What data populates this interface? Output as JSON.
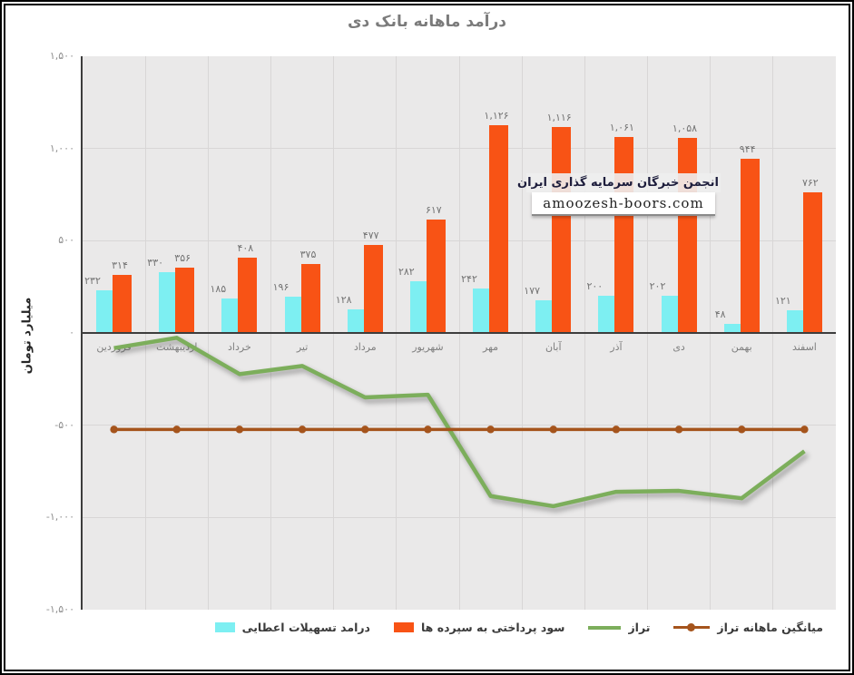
{
  "page": {
    "watermark": {
      "line1": "انجمن خبرگان سرمایه گذاری ایران",
      "line2": "amoozesh-boors.com"
    }
  },
  "colors": {
    "bar_income": "#7DEFF2",
    "bar_interest": "#F85315",
    "balance_line": "#7CAE5B",
    "average_line": "#A5541C",
    "grid": "#d8d6d6",
    "plot_bg": "#EAE9E9",
    "axis": "#3d3d3d",
    "text_gray": "#7f7f7f"
  },
  "chart_data": {
    "type": "bar",
    "subtype": "combo-bar-line",
    "title": "درآمد ماهانه بانک دی",
    "ylabel": "میلیارد تومان",
    "ylim": [
      -1500,
      1500
    ],
    "grid": true,
    "legend_position": "bottom",
    "categories": [
      "فروردین",
      "اردیبهشت",
      "خرداد",
      "تیر",
      "مرداد",
      "شهریور",
      "مهر",
      "آبان",
      "آذر",
      "دی",
      "بهمن",
      "اسفند"
    ],
    "yticks": {
      "values": [
        1500,
        1000,
        500,
        0,
        -500,
        -1000,
        -1500
      ],
      "labels": [
        "۱,۵۰۰",
        "۱,۰۰۰",
        "۵۰۰",
        "۰",
        "-۵۰۰",
        "-۱,۰۰۰",
        "-۱,۵۰۰"
      ]
    },
    "series": [
      {
        "name": "درامد تسهیلات اعطایی",
        "type": "bar",
        "color": "#7DEFF2",
        "values": [
          232,
          330,
          185,
          196,
          128,
          282,
          242,
          177,
          200,
          202,
          48,
          121
        ],
        "labels": [
          "۲۳۲",
          "۳۳۰",
          "۱۸۵",
          "۱۹۶",
          "۱۲۸",
          "۲۸۲",
          "۲۴۲",
          "۱۷۷",
          "۲۰۰",
          "۲۰۲",
          "۴۸",
          "۱۲۱"
        ]
      },
      {
        "name": "سود پرداختی به سپرده ها",
        "type": "bar",
        "color": "#F85315",
        "values": [
          314,
          356,
          408,
          375,
          477,
          617,
          1126,
          1116,
          1061,
          1058,
          944,
          762
        ],
        "labels": [
          "۳۱۴",
          "۳۵۶",
          "۴۰۸",
          "۳۷۵",
          "۴۷۷",
          "۶۱۷",
          "۱,۱۲۶",
          "۱,۱۱۶",
          "۱,۰۶۱",
          "۱,۰۵۸",
          "۹۴۴",
          "۷۶۲"
        ]
      },
      {
        "name": "تراز",
        "type": "line",
        "color": "#7CAE5B",
        "values": [
          -82,
          -26,
          -223,
          -179,
          -349,
          -335,
          -884,
          -939,
          -861,
          -856,
          -896,
          -641
        ]
      },
      {
        "name": "میانگین ماهانه تراز",
        "type": "line-marker",
        "color": "#A5541C",
        "values": [
          -523,
          -523,
          -523,
          -523,
          -523,
          -523,
          -523,
          -523,
          -523,
          -523,
          -523,
          -523
        ]
      }
    ]
  }
}
